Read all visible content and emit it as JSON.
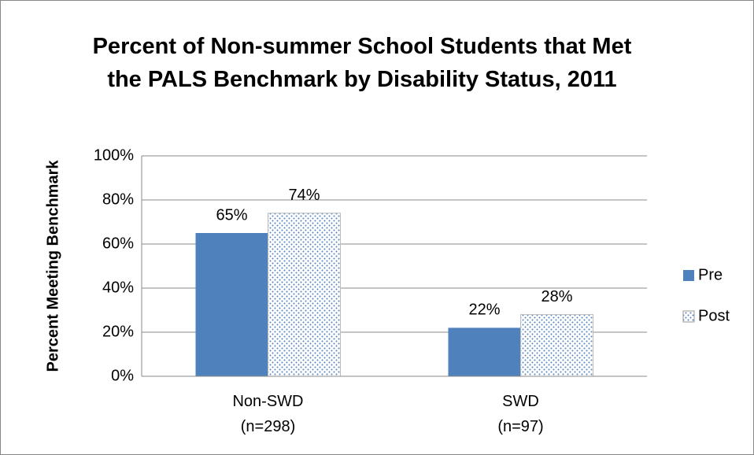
{
  "chart_data": {
    "type": "bar",
    "title": "Percent of Non-summer School Students that Met the PALS Benchmark by Disability Status, 2011",
    "y_label": "Percent Meeting Benchmark",
    "categories": [
      "Non-SWD (n=298)",
      "SWD (n=97)"
    ],
    "series": [
      {
        "name": "Pre",
        "color": "#4f81bd",
        "pattern": "solid",
        "values": [
          65,
          22
        ],
        "value_labels": [
          "65%",
          "22%"
        ]
      },
      {
        "name": "Post",
        "color": "#4f81bd",
        "pattern": "dotted",
        "values": [
          74,
          28
        ],
        "value_labels": [
          "74%",
          "28%"
        ]
      }
    ],
    "ylim": [
      0,
      100
    ],
    "yticks": [
      {
        "value": 0,
        "label": "0%"
      },
      {
        "value": 20,
        "label": "20%"
      },
      {
        "value": 40,
        "label": "40%"
      },
      {
        "value": 60,
        "label": "60%"
      },
      {
        "value": 80,
        "label": "80%"
      },
      {
        "value": 100,
        "label": "100%"
      }
    ],
    "grid": true,
    "legend": "right"
  }
}
